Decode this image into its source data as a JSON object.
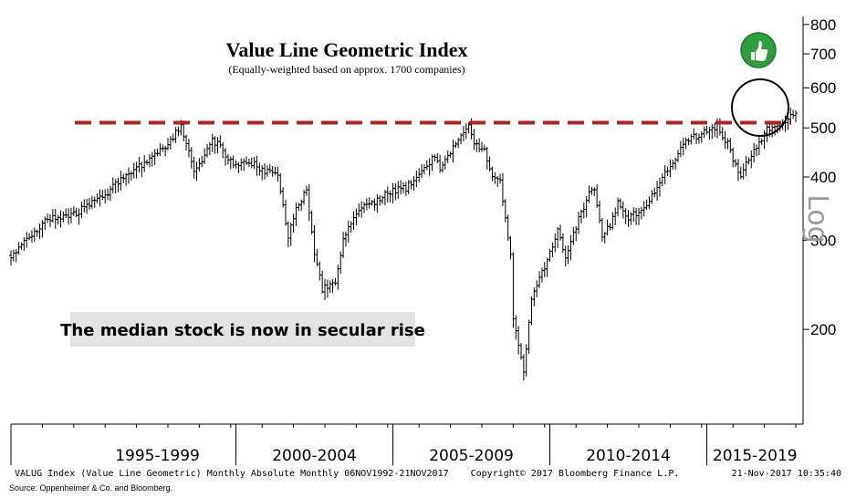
{
  "chart_data": {
    "type": "bar",
    "subtype": "ohlc",
    "title": "Value Line Geometric Index",
    "subtitle": "(Equally-weighted based on approx. 1700 companies)",
    "y_scale": "log",
    "scale_label": "Log",
    "ylim": [
      130,
      830
    ],
    "y_ticks": [
      200,
      300,
      400,
      500,
      600,
      700,
      800
    ],
    "y_tick_labels": [
      "200",
      "300",
      "400",
      "500",
      "600",
      "700",
      "800"
    ],
    "x_range": [
      "1992-11",
      "2017-11"
    ],
    "period_labels": [
      "1995-1999",
      "2000-2004",
      "2005-2009",
      "2010-2014",
      "2015-2019"
    ],
    "resistance_level": 512,
    "resistance_color": "#b22222",
    "bar_color": "#000000",
    "annotation": "The median stock is now in secular rise",
    "footer_left": "VALUG Index (Value Line Geometric) Monthly Absolute  Monthly 06NOV1992-21NOV2017",
    "footer_center": "Copyright© 2017 Bloomberg Finance L.P.",
    "footer_right": "21-Nov-2017 10:35:40",
    "source": "Source:  Oppenheimer & Co. and Bloomberg.",
    "thumb_icon": "thumbs-up-icon",
    "thumb_color": "#2e9e3e",
    "anchors": [
      [
        "1992-11",
        280
      ],
      [
        "1993-06",
        305
      ],
      [
        "1994-01",
        330
      ],
      [
        "1994-12",
        340
      ],
      [
        "1995-12",
        372
      ],
      [
        "1996-06",
        400
      ],
      [
        "1997-06",
        440
      ],
      [
        "1997-12",
        470
      ],
      [
        "1998-04",
        505
      ],
      [
        "1998-09",
        415
      ],
      [
        "1998-12",
        430
      ],
      [
        "1999-04",
        470
      ],
      [
        "1999-07",
        462
      ],
      [
        "1999-12",
        420
      ],
      [
        "2000-06",
        430
      ],
      [
        "2000-12",
        410
      ],
      [
        "2001-05",
        405
      ],
      [
        "2001-09",
        305
      ],
      [
        "2001-12",
        345
      ],
      [
        "2002-04",
        380
      ],
      [
        "2002-07",
        280
      ],
      [
        "2002-10",
        240
      ],
      [
        "2003-03",
        245
      ],
      [
        "2003-06",
        300
      ],
      [
        "2003-12",
        345
      ],
      [
        "2004-06",
        355
      ],
      [
        "2004-12",
        375
      ],
      [
        "2005-06",
        380
      ],
      [
        "2005-12",
        410
      ],
      [
        "2006-05",
        440
      ],
      [
        "2006-07",
        415
      ],
      [
        "2006-12",
        460
      ],
      [
        "2007-06",
        500
      ],
      [
        "2007-08",
        470
      ],
      [
        "2007-12",
        450
      ],
      [
        "2008-03",
        405
      ],
      [
        "2008-06",
        395
      ],
      [
        "2008-10",
        280
      ],
      [
        "2008-11",
        210
      ],
      [
        "2009-02",
        175
      ],
      [
        "2009-03",
        165
      ],
      [
        "2009-06",
        230
      ],
      [
        "2009-12",
        275
      ],
      [
        "2010-04",
        315
      ],
      [
        "2010-07",
        280
      ],
      [
        "2010-12",
        330
      ],
      [
        "2011-04",
        370
      ],
      [
        "2011-06",
        380
      ],
      [
        "2011-09",
        305
      ],
      [
        "2011-12",
        320
      ],
      [
        "2012-03",
        355
      ],
      [
        "2012-06",
        330
      ],
      [
        "2012-12",
        345
      ],
      [
        "2013-06",
        380
      ],
      [
        "2013-12",
        430
      ],
      [
        "2014-06",
        475
      ],
      [
        "2014-10",
        485
      ],
      [
        "2014-12",
        490
      ],
      [
        "2015-05",
        505
      ],
      [
        "2015-08",
        475
      ],
      [
        "2015-09",
        465
      ],
      [
        "2016-01",
        405
      ],
      [
        "2016-02",
        400
      ],
      [
        "2016-06",
        445
      ],
      [
        "2016-12",
        495
      ],
      [
        "2017-03",
        510
      ],
      [
        "2017-06",
        512
      ],
      [
        "2017-09",
        530
      ],
      [
        "2017-11",
        540
      ]
    ]
  }
}
